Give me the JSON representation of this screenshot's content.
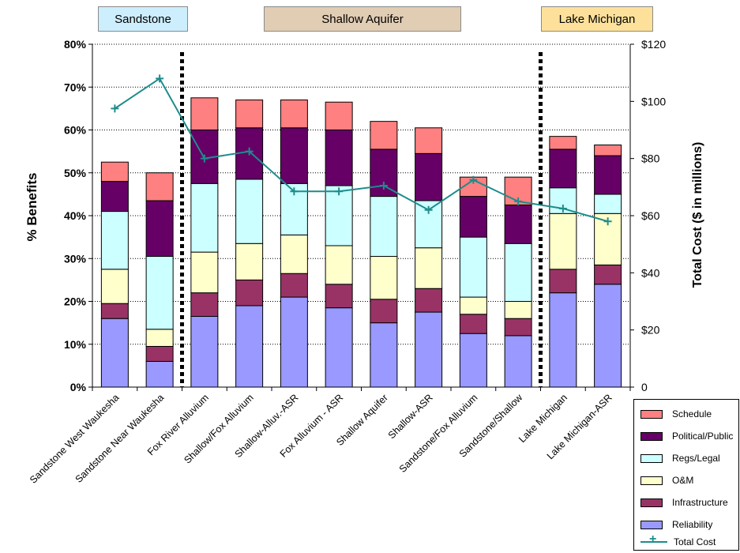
{
  "groups": [
    {
      "label": "Sandstone",
      "color": "#cdeefd"
    },
    {
      "label": "Shallow Aquifer",
      "color": "#e1ccb4"
    },
    {
      "label": "Lake Michigan",
      "color": "#fde19b"
    }
  ],
  "chart_data": {
    "type": "bar",
    "stacked": true,
    "categories": [
      "Sandstone West Waukesha",
      "Sandstone Near Waukesha",
      "Fox River Alluvium",
      "Shallow/Fox Alluvium",
      "Shallow-Alluv.-ASR",
      "Fox Alluvium - ASR",
      "Shallow Aquifer",
      "Shallow-ASR",
      "Sandstone/Fox Alluvium",
      "Sandstone/Shallow",
      "Lake Michigan",
      "Lake Michigan-ASR"
    ],
    "series": [
      {
        "name": "Reliability",
        "color": "#9999ff",
        "values": [
          16,
          6,
          16.5,
          19,
          21,
          18.5,
          15,
          17.5,
          12.5,
          12,
          22,
          24
        ]
      },
      {
        "name": "Infrastructure",
        "color": "#993366",
        "values": [
          3.5,
          3.5,
          5.5,
          6,
          5.5,
          5.5,
          5.5,
          5.5,
          4.5,
          4,
          5.5,
          4.5
        ]
      },
      {
        "name": "O&M",
        "color": "#ffffcc",
        "values": [
          8,
          4,
          9.5,
          8.5,
          9,
          9,
          10,
          9.5,
          4,
          4,
          13,
          12
        ]
      },
      {
        "name": "Regs/Legal",
        "color": "#ccffff",
        "values": [
          13.5,
          17,
          16,
          15,
          12,
          14,
          14,
          11,
          14,
          13.5,
          6,
          4.5
        ]
      },
      {
        "name": "Political/Public",
        "color": "#660066",
        "values": [
          7,
          13,
          12.5,
          12,
          13,
          13,
          11,
          11,
          9.5,
          9,
          9,
          9
        ]
      },
      {
        "name": "Schedule",
        "color": "#ff8080",
        "values": [
          4.5,
          6.5,
          7.5,
          6.5,
          6.5,
          6.5,
          6.5,
          6,
          4.5,
          6.5,
          3,
          2.5
        ]
      }
    ],
    "line_series": {
      "name": "Total Cost",
      "color": "#1f8c8c",
      "axis": "right",
      "values": [
        97.5,
        108,
        80,
        82.5,
        68.5,
        68.5,
        70.5,
        62,
        72.5,
        65,
        62.5,
        58
      ]
    },
    "ylabel": "% Benefits",
    "y2label": "Total Cost ($ in millions)",
    "ylim": [
      0,
      80
    ],
    "y2lim": [
      0,
      120
    ],
    "yticks": [
      "0%",
      "10%",
      "20%",
      "30%",
      "40%",
      "50%",
      "60%",
      "70%",
      "80%"
    ],
    "y2ticks": [
      "0",
      "$20",
      "$40",
      "$60",
      "$80",
      "$100",
      "$120"
    ],
    "legend_position": "bottom-right",
    "grid": true
  }
}
